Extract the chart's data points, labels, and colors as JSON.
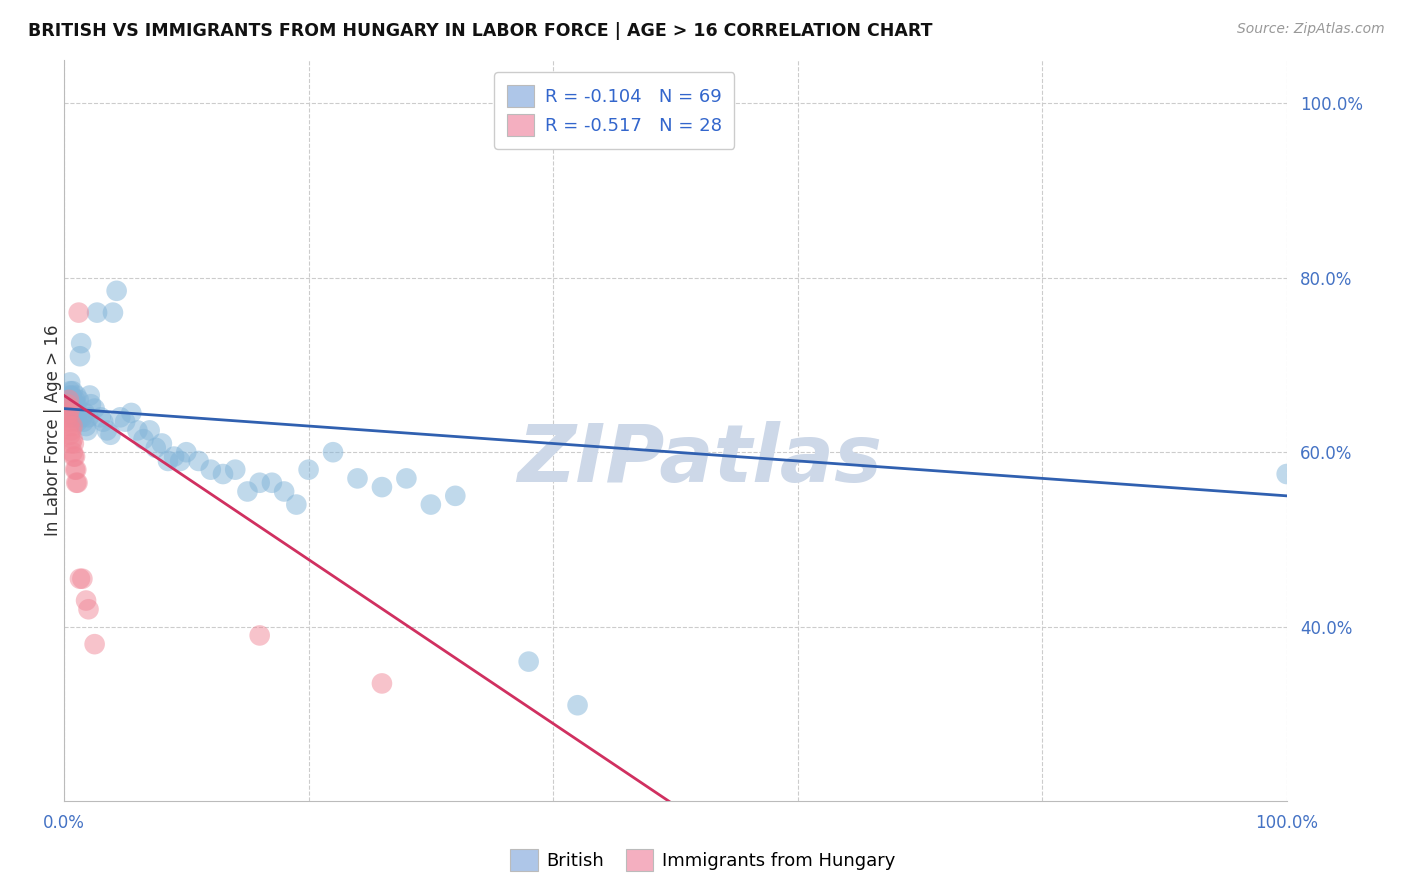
{
  "title": "BRITISH VS IMMIGRANTS FROM HUNGARY IN LABOR FORCE | AGE > 16 CORRELATION CHART",
  "source": "Source: ZipAtlas.com",
  "ylabel": "In Labor Force | Age > 16",
  "xlim": [
    0.0,
    1.0
  ],
  "ylim": [
    0.2,
    1.05
  ],
  "y_tick_positions_right": [
    1.0,
    0.8,
    0.6,
    0.4
  ],
  "y_tick_labels_right": [
    "100.0%",
    "80.0%",
    "60.0%",
    "40.0%"
  ],
  "legend_label1": "R = -0.104   N = 69",
  "legend_label2": "R = -0.517   N = 28",
  "legend_color1": "#aec6e8",
  "legend_color2": "#f4afc0",
  "scatter_color_british": "#82b4d8",
  "scatter_color_hungary": "#f08898",
  "trendline_color_british": "#3060b0",
  "trendline_color_hungary": "#d03060",
  "watermark": "ZIPatlas",
  "watermark_color": "#cdd8e8",
  "footer_label1": "British",
  "footer_label2": "Immigrants from Hungary",
  "british_x": [
    0.003,
    0.004,
    0.005,
    0.005,
    0.005,
    0.006,
    0.006,
    0.007,
    0.007,
    0.007,
    0.008,
    0.008,
    0.009,
    0.009,
    0.01,
    0.01,
    0.01,
    0.011,
    0.011,
    0.012,
    0.013,
    0.014,
    0.015,
    0.016,
    0.017,
    0.018,
    0.019,
    0.02,
    0.021,
    0.022,
    0.025,
    0.027,
    0.03,
    0.032,
    0.035,
    0.038,
    0.04,
    0.043,
    0.046,
    0.05,
    0.055,
    0.06,
    0.065,
    0.07,
    0.075,
    0.08,
    0.085,
    0.09,
    0.095,
    0.1,
    0.11,
    0.12,
    0.13,
    0.14,
    0.15,
    0.16,
    0.17,
    0.18,
    0.19,
    0.2,
    0.22,
    0.24,
    0.26,
    0.28,
    0.3,
    0.32,
    0.38,
    0.42,
    1.0
  ],
  "british_y": [
    0.655,
    0.66,
    0.665,
    0.68,
    0.67,
    0.64,
    0.665,
    0.65,
    0.67,
    0.66,
    0.64,
    0.65,
    0.655,
    0.66,
    0.64,
    0.655,
    0.665,
    0.635,
    0.645,
    0.66,
    0.71,
    0.725,
    0.64,
    0.635,
    0.645,
    0.63,
    0.625,
    0.64,
    0.665,
    0.655,
    0.65,
    0.76,
    0.64,
    0.635,
    0.625,
    0.62,
    0.76,
    0.785,
    0.64,
    0.635,
    0.645,
    0.625,
    0.615,
    0.625,
    0.605,
    0.61,
    0.59,
    0.595,
    0.59,
    0.6,
    0.59,
    0.58,
    0.575,
    0.58,
    0.555,
    0.565,
    0.565,
    0.555,
    0.54,
    0.58,
    0.6,
    0.57,
    0.56,
    0.57,
    0.54,
    0.55,
    0.36,
    0.31,
    0.575
  ],
  "hungary_x": [
    0.003,
    0.003,
    0.004,
    0.004,
    0.004,
    0.005,
    0.005,
    0.005,
    0.006,
    0.006,
    0.007,
    0.007,
    0.007,
    0.008,
    0.008,
    0.009,
    0.009,
    0.01,
    0.01,
    0.011,
    0.012,
    0.013,
    0.015,
    0.018,
    0.02,
    0.025,
    0.16,
    0.26
  ],
  "hungary_y": [
    0.64,
    0.655,
    0.63,
    0.645,
    0.66,
    0.62,
    0.635,
    0.65,
    0.61,
    0.625,
    0.6,
    0.615,
    0.63,
    0.595,
    0.61,
    0.58,
    0.595,
    0.565,
    0.58,
    0.565,
    0.76,
    0.455,
    0.455,
    0.43,
    0.42,
    0.38,
    0.39,
    0.335
  ],
  "trend_british_x0": 0.0,
  "trend_british_y0": 0.65,
  "trend_british_x1": 1.0,
  "trend_british_y1": 0.55,
  "trend_hungary_x0": 0.0,
  "trend_hungary_y0": 0.665,
  "trend_hungary_x1": 0.5,
  "trend_hungary_y1": 0.195
}
